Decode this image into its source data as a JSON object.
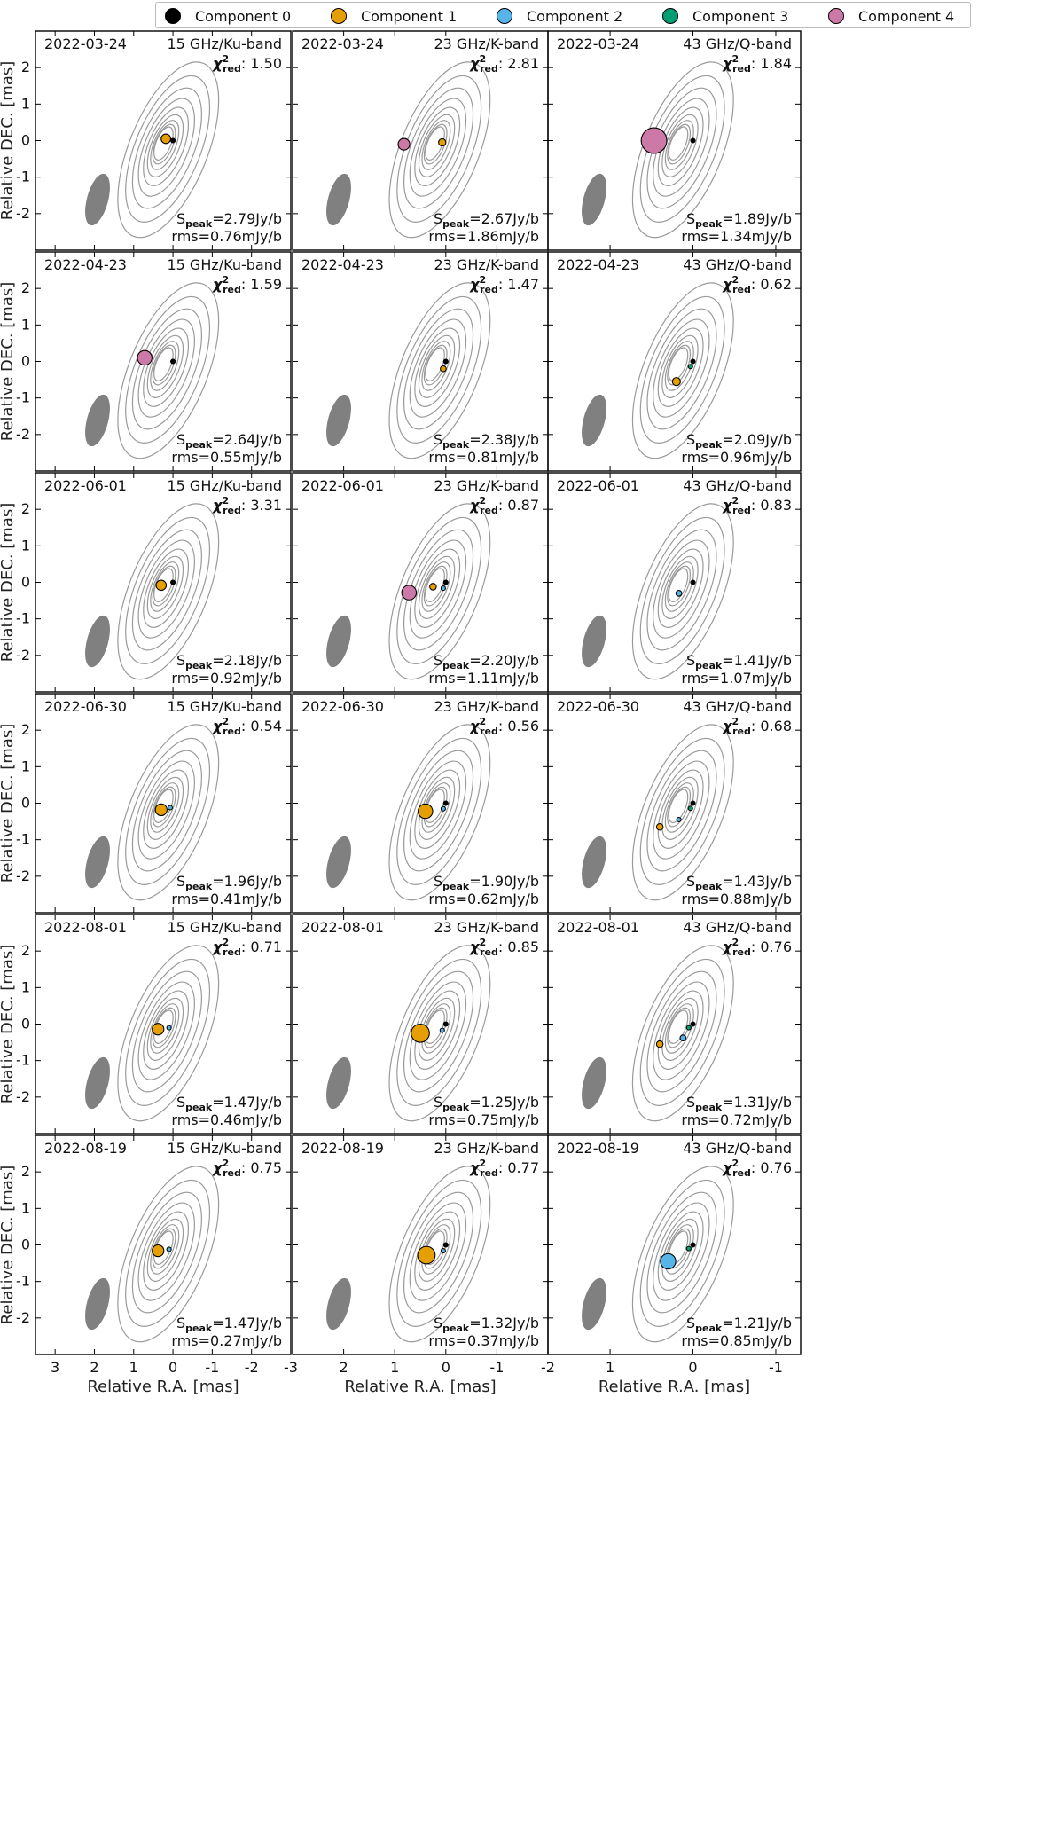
{
  "legend": [
    {
      "label": "Component 0",
      "color": "#000000"
    },
    {
      "label": "Component 1",
      "color": "#E69F00"
    },
    {
      "label": "Component 2",
      "color": "#56B4E9"
    },
    {
      "label": "Component 3",
      "color": "#009E73"
    },
    {
      "label": "Component 4",
      "color": "#CC79A7"
    }
  ],
  "axes": {
    "ylabel": "Relative DEC. [mas]",
    "xlabel": "Relative R.A. [mas]",
    "yticks": [
      "2",
      "1",
      "0",
      "-1",
      "-2"
    ],
    "ytick_values": [
      2,
      1,
      0,
      -1,
      -2
    ],
    "ylim": [
      -3,
      3
    ],
    "columns": [
      {
        "band": "15 GHz/Ku-band",
        "xlim": [
          3.5,
          -3
        ],
        "xticks": [
          "3",
          "2",
          "1",
          "0",
          "-1",
          "-2",
          "-3"
        ],
        "xtick_values": [
          3,
          2,
          1,
          0,
          -1,
          -2,
          -3
        ]
      },
      {
        "band": "23 GHz/K-band",
        "xlim": [
          3,
          -2
        ],
        "xticks": [
          "2",
          "1",
          "0",
          "-1",
          "-2"
        ],
        "xtick_values": [
          2,
          1,
          0,
          -1,
          -2
        ]
      },
      {
        "band": "43 GHz/Q-band",
        "xlim": [
          1.75,
          -1.3
        ],
        "xticks": [
          "1",
          "0",
          "-1"
        ],
        "xtick_values": [
          1,
          0,
          -1
        ]
      }
    ]
  },
  "chi_label": "χ",
  "chi_sup": "2",
  "chi_sub": "red",
  "speak_prefix": "S",
  "speak_sub": "peak",
  "chart_data": {
    "type": "contour-map-grid",
    "rows": 6,
    "cols": 3,
    "panels": [
      {
        "date": "2022-03-24",
        "band": "15 GHz/Ku-band",
        "chi2": ": 1.50",
        "speak": "=2.79Jy/b",
        "rms": "rms=0.76mJy/b",
        "components": [
          {
            "id": 0,
            "x": 0,
            "y": 0,
            "r": 0.05
          },
          {
            "id": 1,
            "x": 0.18,
            "y": 0.05,
            "r": 0.13
          }
        ]
      },
      {
        "date": "2022-03-24",
        "band": "23 GHz/K-band",
        "chi2": ": 2.81",
        "speak": "=2.67Jy/b",
        "rms": "rms=1.86mJy/b",
        "components": [
          {
            "id": 1,
            "x": 0.07,
            "y": -0.05,
            "r": 0.1
          },
          {
            "id": 4,
            "x": 0.82,
            "y": -0.1,
            "r": 0.16
          }
        ]
      },
      {
        "date": "2022-03-24",
        "band": "43 GHz/Q-band",
        "chi2": ": 1.84",
        "speak": "=1.89Jy/b",
        "rms": "rms=1.34mJy/b",
        "components": [
          {
            "id": 0,
            "x": 0,
            "y": 0,
            "r": 0.06
          },
          {
            "id": 4,
            "x": 0.47,
            "y": 0,
            "r": 0.35
          }
        ]
      },
      {
        "date": "2022-04-23",
        "band": "15 GHz/Ku-band",
        "chi2": ": 1.59",
        "speak": "=2.64Jy/b",
        "rms": "rms=0.55mJy/b",
        "components": [
          {
            "id": 0,
            "x": 0,
            "y": 0,
            "r": 0.03
          },
          {
            "id": 4,
            "x": 0.72,
            "y": 0.1,
            "r": 0.2
          }
        ]
      },
      {
        "date": "2022-04-23",
        "band": "23 GHz/K-band",
        "chi2": ": 1.47",
        "speak": "=2.38Jy/b",
        "rms": "rms=0.81mJy/b",
        "components": [
          {
            "id": 0,
            "x": 0,
            "y": 0,
            "r": 0.04
          },
          {
            "id": 1,
            "x": 0.05,
            "y": -0.2,
            "r": 0.08
          }
        ]
      },
      {
        "date": "2022-04-23",
        "band": "43 GHz/Q-band",
        "chi2": ": 0.62",
        "speak": "=2.09Jy/b",
        "rms": "rms=0.96mJy/b",
        "components": [
          {
            "id": 0,
            "x": 0,
            "y": 0,
            "r": 0.02
          },
          {
            "id": 3,
            "x": 0.03,
            "y": -0.14,
            "r": 0.03
          },
          {
            "id": 1,
            "x": 0.2,
            "y": -0.55,
            "r": 0.11
          }
        ]
      },
      {
        "date": "2022-06-01",
        "band": "15 GHz/Ku-band",
        "chi2": ": 3.31",
        "speak": "=2.18Jy/b",
        "rms": "rms=0.92mJy/b",
        "components": [
          {
            "id": 0,
            "x": 0,
            "y": 0,
            "r": 0.05
          },
          {
            "id": 1,
            "x": 0.3,
            "y": -0.08,
            "r": 0.14
          }
        ]
      },
      {
        "date": "2022-06-01",
        "band": "23 GHz/K-band",
        "chi2": ": 0.87",
        "speak": "=2.20Jy/b",
        "rms": "rms=1.11mJy/b",
        "components": [
          {
            "id": 0,
            "x": 0,
            "y": 0,
            "r": 0.02
          },
          {
            "id": 2,
            "x": 0.05,
            "y": -0.16,
            "r": 0.05
          },
          {
            "id": 1,
            "x": 0.25,
            "y": -0.12,
            "r": 0.09
          },
          {
            "id": 4,
            "x": 0.72,
            "y": -0.28,
            "r": 0.2
          }
        ]
      },
      {
        "date": "2022-06-01",
        "band": "43 GHz/Q-band",
        "chi2": ": 0.83",
        "speak": "=1.41Jy/b",
        "rms": "rms=1.07mJy/b",
        "components": [
          {
            "id": 0,
            "x": 0,
            "y": 0,
            "r": 0.03
          },
          {
            "id": 2,
            "x": 0.17,
            "y": -0.3,
            "r": 0.08
          }
        ]
      },
      {
        "date": "2022-06-30",
        "band": "15 GHz/Ku-band",
        "chi2": ": 0.54",
        "speak": "=1.96Jy/b",
        "rms": "rms=0.41mJy/b",
        "components": [
          {
            "id": 2,
            "x": 0.07,
            "y": -0.12,
            "r": 0.06
          },
          {
            "id": 1,
            "x": 0.3,
            "y": -0.18,
            "r": 0.16
          }
        ]
      },
      {
        "date": "2022-06-30",
        "band": "23 GHz/K-band",
        "chi2": ": 0.56",
        "speak": "=1.90Jy/b",
        "rms": "rms=0.62mJy/b",
        "components": [
          {
            "id": 0,
            "x": 0,
            "y": 0,
            "r": 0.02
          },
          {
            "id": 2,
            "x": 0.05,
            "y": -0.15,
            "r": 0.06
          },
          {
            "id": 1,
            "x": 0.4,
            "y": -0.22,
            "r": 0.2
          }
        ]
      },
      {
        "date": "2022-06-30",
        "band": "43 GHz/Q-band",
        "chi2": ": 0.68",
        "speak": "=1.43Jy/b",
        "rms": "rms=0.88mJy/b",
        "components": [
          {
            "id": 0,
            "x": 0,
            "y": 0,
            "r": 0.02
          },
          {
            "id": 3,
            "x": 0.03,
            "y": -0.14,
            "r": 0.03
          },
          {
            "id": 2,
            "x": 0.17,
            "y": -0.45,
            "r": 0.05
          },
          {
            "id": 1,
            "x": 0.4,
            "y": -0.65,
            "r": 0.09
          }
        ]
      },
      {
        "date": "2022-08-01",
        "band": "15 GHz/Ku-band",
        "chi2": ": 0.71",
        "speak": "=1.47Jy/b",
        "rms": "rms=0.46mJy/b",
        "components": [
          {
            "id": 2,
            "x": 0.1,
            "y": -0.1,
            "r": 0.06
          },
          {
            "id": 1,
            "x": 0.38,
            "y": -0.14,
            "r": 0.16
          }
        ]
      },
      {
        "date": "2022-08-01",
        "band": "23 GHz/K-band",
        "chi2": ": 0.85",
        "speak": "=1.25Jy/b",
        "rms": "rms=0.75mJy/b",
        "components": [
          {
            "id": 0,
            "x": 0,
            "y": 0,
            "r": 0.02
          },
          {
            "id": 2,
            "x": 0.07,
            "y": -0.17,
            "r": 0.06
          },
          {
            "id": 1,
            "x": 0.5,
            "y": -0.25,
            "r": 0.25
          }
        ]
      },
      {
        "date": "2022-08-01",
        "band": "43 GHz/Q-band",
        "chi2": ": 0.76",
        "speak": "=1.31Jy/b",
        "rms": "rms=0.72mJy/b",
        "components": [
          {
            "id": 0,
            "x": 0,
            "y": 0,
            "r": 0.02
          },
          {
            "id": 3,
            "x": 0.05,
            "y": -0.1,
            "r": 0.03
          },
          {
            "id": 2,
            "x": 0.12,
            "y": -0.38,
            "r": 0.08
          },
          {
            "id": 1,
            "x": 0.4,
            "y": -0.55,
            "r": 0.09
          }
        ]
      },
      {
        "date": "2022-08-19",
        "band": "15 GHz/Ku-band",
        "chi2": ": 0.75",
        "speak": "=1.47Jy/b",
        "rms": "rms=0.27mJy/b",
        "components": [
          {
            "id": 2,
            "x": 0.1,
            "y": -0.12,
            "r": 0.06
          },
          {
            "id": 1,
            "x": 0.38,
            "y": -0.16,
            "r": 0.16
          }
        ]
      },
      {
        "date": "2022-08-19",
        "band": "23 GHz/K-band",
        "chi2": ": 0.77",
        "speak": "=1.32Jy/b",
        "rms": "rms=0.37mJy/b",
        "components": [
          {
            "id": 0,
            "x": 0,
            "y": 0,
            "r": 0.02
          },
          {
            "id": 2,
            "x": 0.05,
            "y": -0.16,
            "r": 0.06
          },
          {
            "id": 1,
            "x": 0.38,
            "y": -0.28,
            "r": 0.24
          }
        ]
      },
      {
        "date": "2022-08-19",
        "band": "43 GHz/Q-band",
        "chi2": ": 0.76",
        "speak": "=1.21Jy/b",
        "rms": "rms=0.85mJy/b",
        "components": [
          {
            "id": 0,
            "x": 0,
            "y": 0,
            "r": 0.02
          },
          {
            "id": 3,
            "x": 0.05,
            "y": -0.1,
            "r": 0.05
          },
          {
            "id": 2,
            "x": 0.3,
            "y": -0.45,
            "r": 0.21
          }
        ]
      }
    ]
  }
}
